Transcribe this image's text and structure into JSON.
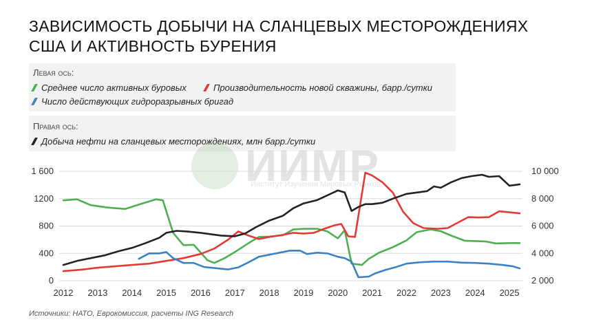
{
  "title": "ЗАВИСИМОСТЬ ДОБЫЧИ НА СЛАНЦЕВЫХ МЕСТОРОЖДЕНИЯХ США И АКТИВНОСТЬ БУРЕНИЯ",
  "legend": {
    "left_axis_head": "Левая ось:",
    "right_axis_head": "Правая ось:",
    "items": {
      "rigs": "Среднее число активных буровых",
      "productivity": "Производительность новой скважины, барр./сутки",
      "frac": "Число действующих гидроразрывных бригад",
      "production": "Добыча нефти на сланцевых месторождениях, млн барр./сутки"
    }
  },
  "watermark": {
    "text": "ИИМР",
    "subtitle": "Институт Изучения Мировых Рынков"
  },
  "source": "Источники: НАТО, Еврокомиссия, расчеты ING Research",
  "colors": {
    "rigs": "#4caf50",
    "productivity": "#e53935",
    "frac": "#3b82c4",
    "production": "#222222"
  },
  "chart_data": {
    "type": "line",
    "title": "ЗАВИСИМОСТЬ ДОБЫЧИ НА СЛАНЦЕВЫХ МЕСТОРОЖДЕНИЯХ США И АКТИВНОСТЬ БУРЕНИЯ",
    "x_ticks": [
      "2012",
      "2013",
      "2014",
      "2015",
      "2016",
      "2017",
      "2018",
      "2019",
      "2020",
      "2021",
      "2022",
      "2023",
      "2024",
      "2025"
    ],
    "left_axis": {
      "ylim": [
        0,
        1600
      ],
      "ticks": [
        0,
        400,
        800,
        1200,
        1600
      ],
      "tick_labels": [
        "0",
        "400",
        "800",
        "1200",
        "1 600"
      ]
    },
    "right_axis": {
      "ylim": [
        2000,
        10000
      ],
      "ticks": [
        2000,
        4000,
        6000,
        8000,
        10000
      ],
      "tick_labels": [
        "2 000",
        "4 000",
        "6 000",
        "8 000",
        "10 000"
      ]
    },
    "grid": "horizontal",
    "legend_position": "top-left",
    "series": [
      {
        "name": "Среднее число активных буровых",
        "axis": "left",
        "color": "#4caf50",
        "x": [
          2012.0,
          2012.4,
          2012.8,
          2013.3,
          2013.8,
          2014.3,
          2014.7,
          2014.9,
          2015.2,
          2015.5,
          2015.8,
          2016.2,
          2016.4,
          2016.7,
          2017.0,
          2017.4,
          2017.7,
          2018.0,
          2018.4,
          2018.7,
          2019.0,
          2019.4,
          2019.7,
          2020.0,
          2020.2,
          2020.4,
          2020.7,
          2020.9,
          2021.2,
          2021.6,
          2022.0,
          2022.3,
          2022.7,
          2023.0,
          2023.3,
          2023.7,
          2024.0,
          2024.3,
          2024.6,
          2025.0,
          2025.3
        ],
        "y": [
          1175,
          1190,
          1105,
          1070,
          1050,
          1130,
          1190,
          1175,
          700,
          520,
          525,
          300,
          260,
          330,
          420,
          550,
          640,
          645,
          665,
          750,
          760,
          760,
          720,
          620,
          740,
          250,
          230,
          320,
          410,
          490,
          590,
          710,
          750,
          725,
          660,
          585,
          580,
          575,
          545,
          550,
          550
        ]
      },
      {
        "name": "Производительность новой скважины, барр./сутки",
        "axis": "left",
        "color": "#e53935",
        "x": [
          2012.0,
          2012.5,
          2013.0,
          2013.5,
          2014.0,
          2014.5,
          2015.0,
          2015.5,
          2016.0,
          2016.4,
          2016.8,
          2017.1,
          2017.4,
          2017.7,
          2018.0,
          2018.4,
          2018.7,
          2019.0,
          2019.3,
          2019.6,
          2019.9,
          2020.1,
          2020.3,
          2020.5,
          2020.8,
          2021.0,
          2021.3,
          2021.6,
          2021.9,
          2022.2,
          2022.5,
          2022.9,
          2023.2,
          2023.5,
          2023.8,
          2024.1,
          2024.4,
          2024.7,
          2025.0,
          2025.3
        ],
        "y": [
          140,
          160,
          190,
          210,
          230,
          250,
          290,
          330,
          390,
          470,
          600,
          720,
          660,
          610,
          640,
          670,
          700,
          690,
          700,
          760,
          810,
          830,
          650,
          640,
          1580,
          1540,
          1440,
          1290,
          1010,
          840,
          770,
          760,
          770,
          850,
          930,
          925,
          930,
          1015,
          1000,
          985
        ]
      },
      {
        "name": "Число действующих гидроразрывных бригад",
        "axis": "left",
        "color": "#3b82c4",
        "x": [
          2014.2,
          2014.5,
          2014.8,
          2015.0,
          2015.2,
          2015.5,
          2015.8,
          2016.1,
          2016.5,
          2016.8,
          2017.1,
          2017.4,
          2017.7,
          2018.0,
          2018.3,
          2018.6,
          2018.9,
          2019.1,
          2019.4,
          2019.7,
          2020.0,
          2020.2,
          2020.4,
          2020.6,
          2020.9,
          2021.1,
          2021.4,
          2021.7,
          2022.0,
          2022.4,
          2022.8,
          2023.2,
          2023.6,
          2024.0,
          2024.4,
          2024.8,
          2025.1,
          2025.3
        ],
        "y": [
          320,
          400,
          400,
          420,
          330,
          260,
          260,
          200,
          180,
          165,
          195,
          270,
          350,
          380,
          410,
          440,
          440,
          390,
          410,
          400,
          350,
          330,
          280,
          50,
          60,
          110,
          160,
          200,
          250,
          270,
          280,
          280,
          265,
          260,
          250,
          230,
          210,
          180
        ]
      },
      {
        "name": "Добыча нефти на сланцевых месторождениях, млн барр./сутки",
        "axis": "right",
        "color": "#222222",
        "x": [
          2012.0,
          2012.4,
          2012.8,
          2013.2,
          2013.6,
          2014.0,
          2014.4,
          2014.8,
          2015.0,
          2015.3,
          2015.6,
          2016.0,
          2016.3,
          2016.6,
          2017.0,
          2017.3,
          2017.6,
          2018.0,
          2018.4,
          2018.7,
          2019.0,
          2019.4,
          2019.7,
          2020.0,
          2020.2,
          2020.4,
          2020.6,
          2020.8,
          2021.0,
          2021.3,
          2021.6,
          2022.0,
          2022.3,
          2022.6,
          2022.8,
          2023.0,
          2023.3,
          2023.6,
          2023.9,
          2024.2,
          2024.4,
          2024.7,
          2025.0,
          2025.3
        ],
        "y": [
          3150,
          3450,
          3650,
          3850,
          4150,
          4400,
          4750,
          5150,
          5500,
          5650,
          5600,
          5500,
          5400,
          5300,
          5250,
          5450,
          5900,
          6400,
          6750,
          7300,
          7650,
          7900,
          8250,
          8600,
          8450,
          7100,
          7400,
          7600,
          7600,
          7700,
          8000,
          8350,
          8450,
          8550,
          8900,
          8800,
          9200,
          9500,
          9650,
          9750,
          9600,
          9650,
          8950,
          9050
        ]
      }
    ]
  }
}
